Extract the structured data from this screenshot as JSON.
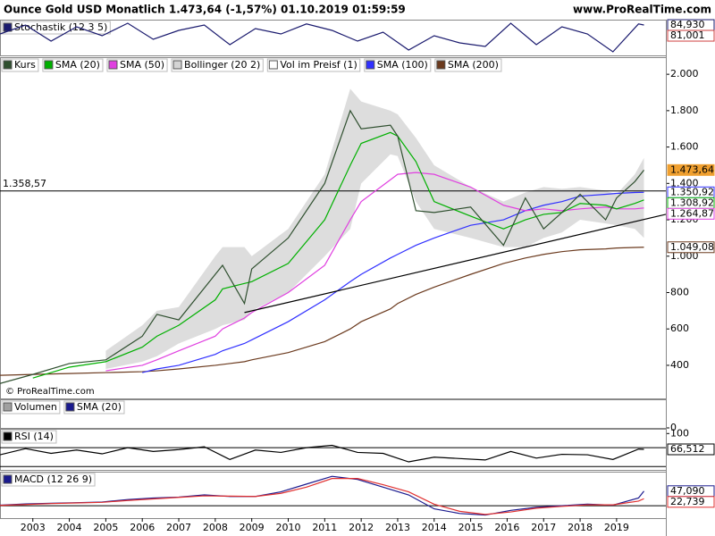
{
  "header": {
    "title": "Ounce Gold USD Monatlich 1.473,64 (-1,57%) 01.10.2019 01:59:59",
    "source": "www.ProRealTime.com",
    "watermark": "© ProRealTime.com"
  },
  "chart_data": [
    {
      "type": "line",
      "legend": [
        {
          "label": "Stochastik (12 3 5)",
          "color": "#1a1a6e"
        }
      ],
      "xlim": [
        2002.1,
        2020.35
      ],
      "ylim": [
        0,
        100
      ],
      "x": [
        2002.1,
        2002.8,
        2003.5,
        2004.2,
        2004.9,
        2005.6,
        2006.3,
        2007,
        2007.7,
        2008.4,
        2009.1,
        2009.8,
        2010.5,
        2011.2,
        2011.9,
        2012.6,
        2013.3,
        2014,
        2014.7,
        2015.4,
        2016.1,
        2016.8,
        2017.5,
        2018.2,
        2018.9,
        2019.6,
        2019.75
      ],
      "series": [
        {
          "legend": 0,
          "values": [
            60,
            85,
            40,
            80,
            55,
            90,
            45,
            70,
            85,
            30,
            75,
            60,
            88,
            70,
            40,
            65,
            15,
            55,
            35,
            25,
            90,
            30,
            80,
            60,
            10,
            88,
            85
          ]
        }
      ],
      "tags": [
        {
          "value": 84.93,
          "label": "84,930",
          "color": "#1a1a6e"
        },
        {
          "value": 81.001,
          "label": "81,001",
          "color": "#d04040"
        }
      ]
    },
    {
      "type": "line",
      "legend": [
        {
          "label": "Kurs",
          "color": "#2f4f2f"
        },
        {
          "label": "SMA (20)",
          "color": "#00b000"
        },
        {
          "label": "SMA (50)",
          "color": "#e040e0"
        },
        {
          "label": "Bollinger (20 2)",
          "color": "#d4d4d4"
        },
        {
          "label": "Vol im Preisf (1)",
          "color": "#ffffff"
        },
        {
          "label": "SMA (100)",
          "color": "#3030ff"
        },
        {
          "label": "SMA (200)",
          "color": "#6b3a1e"
        }
      ],
      "xlim": [
        2002.1,
        2020.35
      ],
      "ylim": [
        218,
        2094
      ],
      "yticks": [
        400,
        600,
        800,
        {
          "value": 1000,
          "label": "1.000"
        },
        {
          "value": 1200,
          "label": "1.200"
        },
        {
          "value": 1400,
          "label": "1.400"
        },
        {
          "value": 1600,
          "label": "1.600"
        },
        {
          "value": 1800,
          "label": "1.800"
        },
        {
          "value": 2000,
          "label": "2.000"
        }
      ],
      "x": [
        2002.1,
        2003,
        2004,
        2005,
        2006,
        2006.4,
        2007,
        2008,
        2008.2,
        2008.8,
        2009,
        2010,
        2011,
        2011.7,
        2012,
        2012.8,
        2013,
        2013.5,
        2014,
        2015,
        2015.9,
        2016.5,
        2017,
        2017.5,
        2018,
        2018.7,
        2019,
        2019.5,
        2019.75
      ],
      "band": {
        "legend": 3,
        "upper": [
          null,
          null,
          null,
          480,
          620,
          700,
          720,
          1000,
          1050,
          1050,
          1000,
          1150,
          1450,
          1920,
          1850,
          1800,
          1780,
          1650,
          1500,
          1380,
          1300,
          1350,
          1380,
          1370,
          1380,
          1360,
          1340,
          1450,
          1540
        ],
        "lower": [
          null,
          null,
          null,
          380,
          420,
          450,
          520,
          600,
          620,
          650,
          700,
          800,
          1000,
          1150,
          1400,
          1560,
          1550,
          1300,
          1150,
          1100,
          1050,
          1050,
          1100,
          1130,
          1200,
          1180,
          1170,
          1150,
          1100
        ]
      },
      "series": [
        {
          "legend": 6,
          "values": [
            345,
            350,
            355,
            360,
            365,
            370,
            380,
            400,
            405,
            420,
            430,
            470,
            530,
            600,
            640,
            710,
            740,
            790,
            830,
            900,
            960,
            990,
            1010,
            1025,
            1035,
            1040,
            1045,
            1048,
            1049.08
          ]
        },
        {
          "legend": 5,
          "values": [
            null,
            null,
            null,
            null,
            360,
            380,
            400,
            460,
            480,
            520,
            540,
            640,
            760,
            860,
            900,
            990,
            1010,
            1060,
            1100,
            1170,
            1200,
            1250,
            1280,
            1300,
            1330,
            1340,
            1345,
            1350,
            1350.92
          ]
        },
        {
          "legend": 2,
          "values": [
            null,
            null,
            null,
            370,
            400,
            430,
            480,
            560,
            600,
            660,
            690,
            800,
            950,
            1200,
            1300,
            1420,
            1450,
            1460,
            1450,
            1380,
            1280,
            1250,
            1260,
            1250,
            1260,
            1270,
            1260,
            1260,
            1264.87
          ]
        },
        {
          "legend": 1,
          "values": [
            null,
            330,
            390,
            420,
            500,
            560,
            620,
            760,
            820,
            850,
            860,
            960,
            1200,
            1500,
            1620,
            1680,
            1660,
            1520,
            1300,
            1220,
            1150,
            1200,
            1230,
            1240,
            1290,
            1280,
            1260,
            1290,
            1308.92
          ]
        },
        {
          "legend": 0,
          "values": [
            300,
            350,
            410,
            430,
            560,
            680,
            650,
            900,
            950,
            740,
            930,
            1100,
            1400,
            1800,
            1700,
            1720,
            1660,
            1250,
            1240,
            1270,
            1060,
            1320,
            1150,
            1240,
            1340,
            1200,
            1320,
            1410,
            1473.64
          ]
        }
      ],
      "trendline": {
        "x": [
          2008.8,
          2020.35
        ],
        "values": [
          690,
          1230
        ]
      },
      "hline": {
        "value": 1358.57,
        "label": "1.358,57"
      },
      "tags": [
        {
          "value": 1473.64,
          "label": "1.473,64",
          "color": "#f0a030"
        },
        {
          "value": 1350.92,
          "label": "1.350,92",
          "color": "#3030ff"
        },
        {
          "value": 1308.92,
          "label": "1.308,92",
          "color": "#00b000"
        },
        {
          "value": 1264.87,
          "label": "1.264,87",
          "color": "#e040e0"
        },
        {
          "value": 1049.08,
          "label": "1.049,08",
          "color": "#6b3a1e"
        }
      ]
    },
    {
      "type": "line",
      "legend": [
        {
          "label": "Volumen",
          "color": "#a0a0a0"
        },
        {
          "label": "SMA (20)",
          "color": "#1a1a8e"
        }
      ],
      "xlim": [
        2002.1,
        2020.35
      ],
      "ylim": [
        0,
        10
      ],
      "yticks": [
        0
      ]
    },
    {
      "type": "line",
      "legend": [
        {
          "label": "RSI (14)",
          "color": "#000000"
        }
      ],
      "xlim": [
        2002.1,
        2020.35
      ],
      "ylim": [
        23,
        110
      ],
      "yticks": [
        100
      ],
      "levels": [
        70,
        30
      ],
      "x": [
        2002.1,
        2002.8,
        2003.5,
        2004.2,
        2004.9,
        2005.6,
        2006.3,
        2007,
        2007.7,
        2008.4,
        2009.1,
        2009.8,
        2010.5,
        2011.2,
        2011.9,
        2012.6,
        2013.3,
        2014,
        2014.7,
        2015.4,
        2016.1,
        2016.8,
        2017.5,
        2018.2,
        2018.9,
        2019.6,
        2019.75
      ],
      "series": [
        {
          "legend": 0,
          "values": [
            55,
            68,
            58,
            65,
            57,
            70,
            62,
            66,
            72,
            45,
            65,
            60,
            70,
            75,
            60,
            58,
            40,
            50,
            47,
            44,
            62,
            48,
            56,
            55,
            45,
            67,
            66.512
          ]
        }
      ],
      "tags": [
        {
          "value": 66.512,
          "label": "66,512",
          "color": "#000000"
        }
      ]
    },
    {
      "type": "line",
      "legend": [
        {
          "label": "MACD (12 26 9)",
          "color": "#1a1a8e"
        }
      ],
      "xlim": [
        2002.1,
        2020.35
      ],
      "ylim": [
        -40,
        110
      ],
      "levels": [
        0
      ],
      "xticks": [
        2003,
        2004,
        2005,
        2006,
        2007,
        2008,
        2009,
        2010,
        2011,
        2012,
        2013,
        2014,
        2015,
        2016,
        2017,
        2018,
        2019
      ],
      "x": [
        2002.1,
        2002.8,
        2003.5,
        2004.2,
        2004.9,
        2005.6,
        2006.3,
        2007,
        2007.7,
        2008.4,
        2009.1,
        2009.8,
        2010.5,
        2011.2,
        2011.9,
        2012.6,
        2013.3,
        2014,
        2014.7,
        2015.4,
        2016.1,
        2016.8,
        2017.5,
        2018.2,
        2018.9,
        2019.6,
        2019.75
      ],
      "series": [
        {
          "legend": 0,
          "values": [
            2,
            6,
            8,
            10,
            12,
            20,
            25,
            28,
            35,
            30,
            30,
            45,
            70,
            95,
            85,
            60,
            35,
            -10,
            -25,
            -30,
            -15,
            -5,
            0,
            5,
            2,
            25,
            47.09
          ]
        },
        {
          "color": "#e03030",
          "values": [
            1,
            4,
            7,
            9,
            11,
            17,
            22,
            27,
            32,
            31,
            30,
            40,
            60,
            88,
            88,
            68,
            45,
            5,
            -18,
            -28,
            -20,
            -8,
            -2,
            3,
            3,
            15,
            22.739
          ]
        }
      ],
      "tags": [
        {
          "value": 47.09,
          "label": "47,090",
          "color": "#1a1a8e"
        },
        {
          "value": 22.739,
          "label": "22,739",
          "color": "#e03030"
        }
      ]
    }
  ]
}
